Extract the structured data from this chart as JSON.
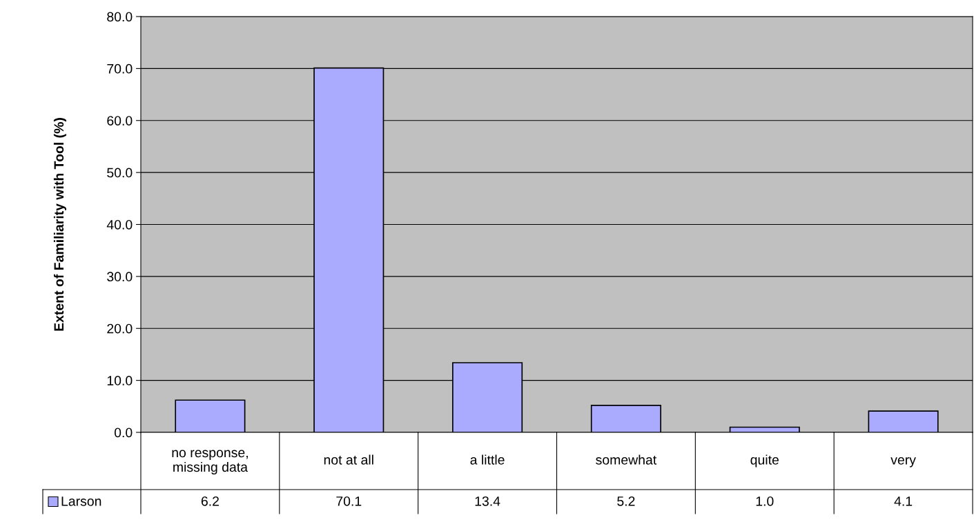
{
  "chart_data": {
    "type": "bar",
    "ylabel": "Extent of Familiarity with Tool (%)",
    "categories": [
      "no response,\nmissing data",
      "not at all",
      "a little",
      "somewhat",
      "quite",
      "very"
    ],
    "series": [
      {
        "name": "Larson",
        "color": "#aaaaff",
        "values": [
          6.2,
          70.1,
          13.4,
          5.2,
          1.0,
          4.1
        ],
        "value_labels": [
          "6.2",
          "70.1",
          "13.4",
          "5.2",
          "1.0",
          "4.1"
        ]
      }
    ],
    "ylim": [
      0,
      80
    ],
    "yticks": [
      {
        "value": 0,
        "label": "0.0"
      },
      {
        "value": 10,
        "label": "10.0"
      },
      {
        "value": 20,
        "label": "20.0"
      },
      {
        "value": 30,
        "label": "30.0"
      },
      {
        "value": 40,
        "label": "40.0"
      },
      {
        "value": 50,
        "label": "50.0"
      },
      {
        "value": 60,
        "label": "60.0"
      },
      {
        "value": 70,
        "label": "70.0"
      },
      {
        "value": 80,
        "label": "80.0"
      }
    ],
    "grid": "y",
    "legend": "bottom left"
  }
}
